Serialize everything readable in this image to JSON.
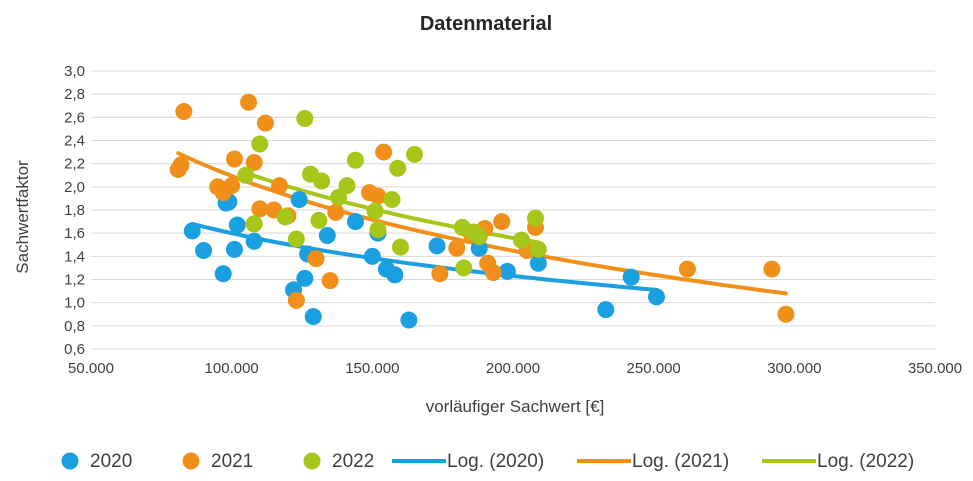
{
  "chart_data": {
    "type": "scatter",
    "title": "Datenmaterial",
    "xlabel": "vorläufiger Sachwert [€]",
    "ylabel": "Sachwertfaktor",
    "xlim": [
      50000,
      350000
    ],
    "ylim": [
      0.6,
      3.0
    ],
    "x_ticks": [
      "50.000",
      "100.000",
      "150.000",
      "200.000",
      "250.000",
      "300.000",
      "350.000"
    ],
    "y_ticks": [
      "0,6",
      "0,8",
      "1,0",
      "1,2",
      "1,4",
      "1,6",
      "1,8",
      "2,0",
      "2,2",
      "2,4",
      "2,6",
      "2,8",
      "3,0"
    ],
    "grid": "horizontal",
    "legend_position": "bottom",
    "series": [
      {
        "name": "2020",
        "color": "#1a9fe0",
        "points": [
          [
            86000,
            1.62
          ],
          [
            90000,
            1.45
          ],
          [
            97000,
            1.25
          ],
          [
            98000,
            1.86
          ],
          [
            99000,
            1.87
          ],
          [
            101000,
            1.46
          ],
          [
            102000,
            1.67
          ],
          [
            108000,
            1.53
          ],
          [
            122000,
            1.11
          ],
          [
            124000,
            1.89
          ],
          [
            126000,
            1.21
          ],
          [
            127000,
            1.42
          ],
          [
            129000,
            0.88
          ],
          [
            134000,
            1.58
          ],
          [
            144000,
            1.7
          ],
          [
            150000,
            1.4
          ],
          [
            152000,
            1.6
          ],
          [
            155000,
            1.29
          ],
          [
            158000,
            1.24
          ],
          [
            163000,
            0.85
          ],
          [
            173000,
            1.49
          ],
          [
            188000,
            1.47
          ],
          [
            198000,
            1.27
          ],
          [
            209000,
            1.34
          ],
          [
            233000,
            0.94
          ],
          [
            242000,
            1.22
          ],
          [
            251000,
            1.05
          ]
        ]
      },
      {
        "name": "2021",
        "color": "#f0901a",
        "points": [
          [
            81000,
            2.15
          ],
          [
            82000,
            2.19
          ],
          [
            83000,
            2.65
          ],
          [
            95000,
            2.0
          ],
          [
            97000,
            1.95
          ],
          [
            100000,
            2.01
          ],
          [
            101000,
            2.24
          ],
          [
            106000,
            2.73
          ],
          [
            108000,
            2.21
          ],
          [
            110000,
            1.81
          ],
          [
            112000,
            2.55
          ],
          [
            115000,
            1.8
          ],
          [
            117000,
            2.01
          ],
          [
            120000,
            1.75
          ],
          [
            123000,
            1.02
          ],
          [
            130000,
            1.38
          ],
          [
            135000,
            1.19
          ],
          [
            137000,
            1.78
          ],
          [
            149000,
            1.95
          ],
          [
            152000,
            1.92
          ],
          [
            154000,
            2.3
          ],
          [
            174000,
            1.25
          ],
          [
            180000,
            1.47
          ],
          [
            185000,
            1.6
          ],
          [
            190000,
            1.64
          ],
          [
            191000,
            1.34
          ],
          [
            193000,
            1.26
          ],
          [
            196000,
            1.7
          ],
          [
            205000,
            1.45
          ],
          [
            208000,
            1.65
          ],
          [
            262000,
            1.29
          ],
          [
            292000,
            1.29
          ],
          [
            297000,
            0.9
          ]
        ]
      },
      {
        "name": "2022",
        "color": "#a6c719",
        "points": [
          [
            105000,
            2.1
          ],
          [
            108000,
            1.68
          ],
          [
            110000,
            2.37
          ],
          [
            119000,
            1.74
          ],
          [
            123000,
            1.55
          ],
          [
            126000,
            2.59
          ],
          [
            128000,
            2.11
          ],
          [
            131000,
            1.71
          ],
          [
            132000,
            2.05
          ],
          [
            138000,
            1.91
          ],
          [
            141000,
            2.01
          ],
          [
            144000,
            2.23
          ],
          [
            151000,
            1.79
          ],
          [
            152000,
            1.63
          ],
          [
            157000,
            1.89
          ],
          [
            159000,
            2.16
          ],
          [
            160000,
            1.48
          ],
          [
            165000,
            2.28
          ],
          [
            182000,
            1.65
          ],
          [
            182500,
            1.3
          ],
          [
            186000,
            1.61
          ],
          [
            188000,
            1.57
          ],
          [
            203000,
            1.54
          ],
          [
            208000,
            1.73
          ],
          [
            209000,
            1.46
          ]
        ]
      }
    ],
    "trendlines": [
      {
        "name": "Log. (2020)",
        "type": "log",
        "color": "#1a9fe0",
        "x_range": [
          86000,
          251000
        ],
        "y_at_range": [
          1.68,
          1.11
        ]
      },
      {
        "name": "Log. (2021)",
        "type": "log",
        "color": "#f0901a",
        "x_range": [
          81000,
          297000
        ],
        "y_at_range": [
          2.29,
          1.08
        ]
      },
      {
        "name": "Log. (2022)",
        "type": "log",
        "color": "#a6c719",
        "x_range": [
          105000,
          209000
        ],
        "y_at_range": [
          2.12,
          1.52
        ]
      }
    ]
  }
}
